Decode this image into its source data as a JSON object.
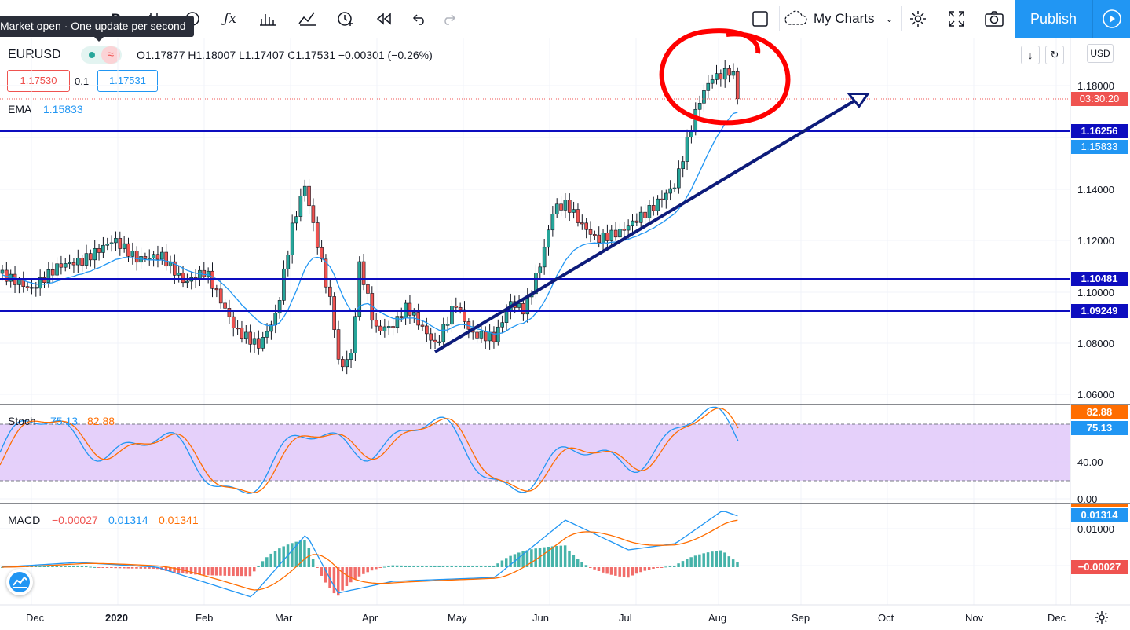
{
  "toolbar": {
    "my_charts_label": "My Charts",
    "publish_label": "Publish",
    "interval_label": "D",
    "tooltip": "Market open · One update per second"
  },
  "symbol": {
    "name": "EURUSD",
    "ohlc": "O1.17877  H1.18007  L1.17407  C1.17531  −0.00301 (−0.26%)",
    "bid": "1.17530",
    "spread": "0.1",
    "ask": "1.17531",
    "currency": "USD"
  },
  "ema": {
    "label": "EMA",
    "value": "1.15833"
  },
  "stoch": {
    "label": "Stoch",
    "k": "75.13",
    "d": "82.88"
  },
  "macd": {
    "label": "MACD",
    "hist": "−0.00027",
    "macd": "0.01314",
    "signal": "0.01341"
  },
  "price_axis": {
    "ticks": [
      "1.18000",
      "1.14000",
      "1.12000",
      "1.10000",
      "1.08000",
      "1.06000"
    ],
    "current_price": "03:30:20",
    "level_tags": [
      "1.16256",
      "1.15833",
      "1.10481",
      "1.09249"
    ]
  },
  "stoch_axis": {
    "ticks": [
      "40.00",
      "0.00"
    ],
    "tags": [
      "82.88",
      "75.13"
    ]
  },
  "macd_axis": {
    "ticks": [
      "0.01000"
    ],
    "tags": [
      "0.01314",
      "−0.00027"
    ]
  },
  "time_axis": [
    "Dec",
    "2020",
    "Feb",
    "Mar",
    "Apr",
    "May",
    "Jun",
    "Jul",
    "Aug",
    "Sep",
    "Oct",
    "Nov",
    "Dec"
  ],
  "colors": {
    "up": "#26a69a",
    "down": "#ef5350",
    "ema": "#2196f3",
    "level": "#0d0dbf",
    "arrow": "#0d1b7a",
    "circle": "#ff0000",
    "stoch_band": "#e1c8f9",
    "accent": "#2196f3"
  },
  "icons": [
    "chart-type-icon",
    "fx-icon",
    "bar-chart-icon",
    "indicators-icon",
    "alert-icon",
    "replay-icon",
    "undo-icon",
    "redo-icon",
    "layout-icon",
    "cloud-icon",
    "settings-icon",
    "fullscreen-icon",
    "camera-icon",
    "play-icon",
    "gear-icon",
    "tradingview-logo"
  ]
}
